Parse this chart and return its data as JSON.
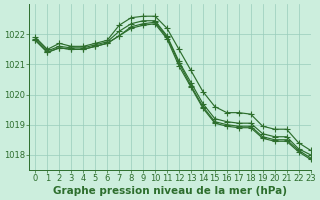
{
  "title": "Graphe pression niveau de la mer (hPa)",
  "background_color": "#cceedd",
  "grid_color": "#99ccbb",
  "line_color": "#2d6e2d",
  "xlim": [
    -0.5,
    23
  ],
  "ylim": [
    1017.5,
    1023.0
  ],
  "yticks": [
    1018,
    1019,
    1020,
    1021,
    1022
  ],
  "xticks": [
    0,
    1,
    2,
    3,
    4,
    5,
    6,
    7,
    8,
    9,
    10,
    11,
    12,
    13,
    14,
    15,
    16,
    17,
    18,
    19,
    20,
    21,
    22,
    23
  ],
  "series": [
    [
      1021.9,
      1021.5,
      1021.7,
      1021.6,
      1021.6,
      1021.7,
      1021.8,
      1022.3,
      1022.55,
      1022.6,
      1022.6,
      1022.2,
      1021.5,
      1020.8,
      1020.1,
      1019.6,
      1019.4,
      1019.4,
      1019.35,
      1018.95,
      1018.85,
      1018.85,
      1018.4,
      1018.15
    ],
    [
      1021.85,
      1021.45,
      1021.6,
      1021.55,
      1021.55,
      1021.65,
      1021.75,
      1022.1,
      1022.35,
      1022.45,
      1022.45,
      1021.95,
      1021.1,
      1020.4,
      1019.7,
      1019.2,
      1019.1,
      1019.05,
      1019.05,
      1018.7,
      1018.6,
      1018.6,
      1018.2,
      1018.0
    ],
    [
      1021.8,
      1021.4,
      1021.55,
      1021.5,
      1021.5,
      1021.6,
      1021.7,
      1021.95,
      1022.2,
      1022.3,
      1022.35,
      1021.85,
      1020.95,
      1020.25,
      1019.55,
      1019.05,
      1018.95,
      1018.9,
      1018.9,
      1018.55,
      1018.45,
      1018.45,
      1018.1,
      1017.85
    ],
    [
      1021.8,
      1021.4,
      1021.55,
      1021.5,
      1021.5,
      1021.6,
      1021.7,
      1021.95,
      1022.25,
      1022.35,
      1022.4,
      1021.9,
      1021.05,
      1020.3,
      1019.6,
      1019.1,
      1019.0,
      1018.95,
      1018.95,
      1018.6,
      1018.5,
      1018.5,
      1018.15,
      1017.9
    ]
  ],
  "marker": "+",
  "marker_size": 4,
  "linewidth": 0.85,
  "title_fontsize": 7.5,
  "tick_fontsize": 6
}
